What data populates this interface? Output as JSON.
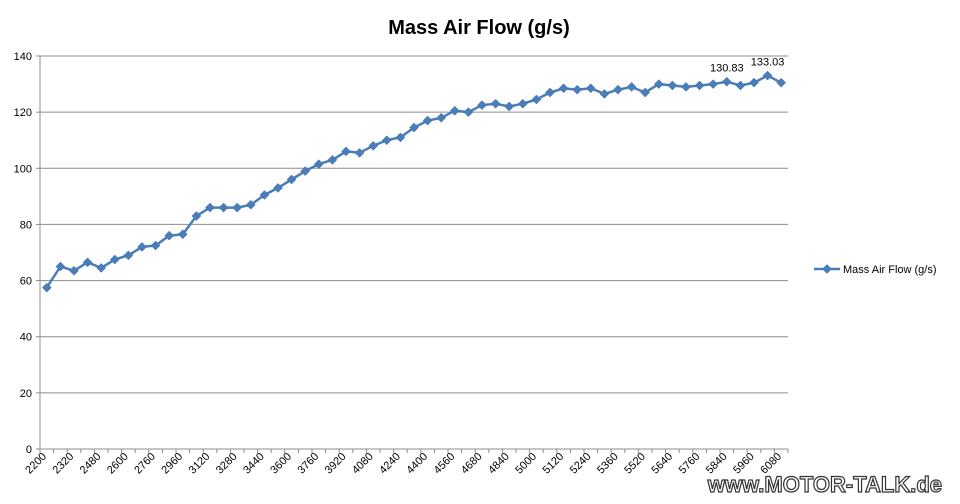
{
  "chart_data": {
    "type": "line",
    "title": "Mass Air Flow (g/s)",
    "xlabel": "",
    "ylabel": "",
    "ylim": [
      0,
      140
    ],
    "ytick_step": 20,
    "y_tick_labels": [
      "0",
      "20",
      "40",
      "60",
      "80",
      "100",
      "120",
      "140"
    ],
    "x_tick_labels": [
      "2200",
      "2320",
      "2480",
      "2600",
      "2760",
      "2960",
      "3120",
      "3280",
      "3440",
      "3600",
      "3760",
      "3920",
      "4080",
      "4240",
      "4400",
      "4560",
      "4680",
      "4840",
      "5000",
      "5120",
      "5240",
      "5360",
      "5520",
      "5640",
      "5760",
      "5840",
      "5960",
      "6080"
    ],
    "grid": "horizontal",
    "legend": "right",
    "series": [
      {
        "name": "Mass Air Flow (g/s)",
        "color": "#4a7ebb",
        "marker": "diamond",
        "values": [
          57.5,
          65,
          63.5,
          66.5,
          64.5,
          67.5,
          69,
          72,
          72.5,
          76,
          76.5,
          83,
          86,
          86,
          86,
          87,
          90.5,
          93,
          96,
          99,
          101.5,
          103,
          106,
          105.5,
          108,
          110,
          111,
          114.5,
          117,
          118,
          120.5,
          120,
          122.5,
          123,
          122,
          123,
          124.5,
          127,
          128.5,
          128,
          128.5,
          126.5,
          128,
          129,
          127,
          130,
          129.5,
          129,
          129.5,
          130,
          130.83,
          129.5,
          130.5,
          133.03,
          130.5
        ]
      }
    ],
    "data_labels": [
      {
        "index": 50,
        "text": "130.83"
      },
      {
        "index": 53,
        "text": "133.03"
      }
    ]
  },
  "watermark": "www.MOTOR-TALK.de"
}
